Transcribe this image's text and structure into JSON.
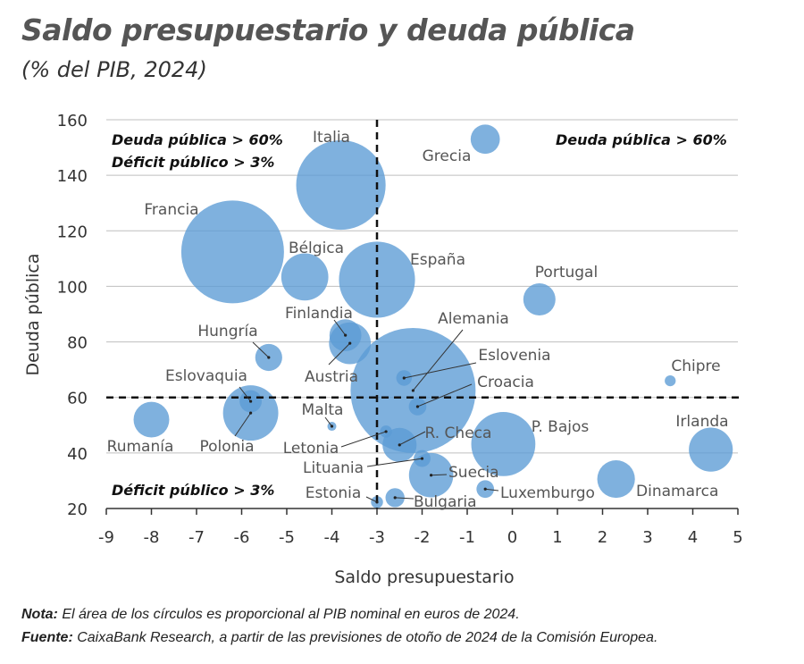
{
  "title": "Saldo presupuestario y deuda pública",
  "subtitle": "(% del PIB, 2024)",
  "note_label": "Nota:",
  "note_text": " El área de los círculos es proporcional al PIB nominal en euros de 2024.",
  "source_label": "Fuente:",
  "source_text": " CaixaBank Research, a partir de las previsiones de otoño de 2024 de la Comisión Europea.",
  "chart_data": {
    "type": "scatter",
    "xlabel": "Saldo presupuestario",
    "ylabel": "Deuda pública",
    "xlim": [
      -9,
      5
    ],
    "ylim": [
      20,
      160
    ],
    "xticks": [
      "-9",
      "-8",
      "-7",
      "-6",
      "-5",
      "-4",
      "-3",
      "-2",
      "-1",
      "0",
      "1",
      "2",
      "3",
      "4",
      "5"
    ],
    "yticks": [
      "20",
      "40",
      "60",
      "80",
      "100",
      "120",
      "140",
      "160"
    ],
    "grid": "horizontal",
    "reference_lines": {
      "x": -3,
      "y": 60
    },
    "bubble_color": "#5b9bd5",
    "size_note": "bubble area ∝ nominal GDP (estimated, bn EUR)",
    "quadrant_labels": {
      "top_left_1": "Deuda pública > 60%",
      "top_left_2": "Déficit público > 3%",
      "top_right": "Deuda pública > 60%",
      "bottom_left": "Déficit público > 3%"
    },
    "points": [
      {
        "label": "Alemania",
        "x": -2.2,
        "y": 62.5,
        "gdp": 4300
      },
      {
        "label": "Francia",
        "x": -6.2,
        "y": 112.4,
        "gdp": 2900
      },
      {
        "label": "Italia",
        "x": -3.8,
        "y": 136.5,
        "gdp": 2200
      },
      {
        "label": "España",
        "x": -3.0,
        "y": 102.4,
        "gdp": 1590
      },
      {
        "label": "P. Bajos",
        "x": -0.2,
        "y": 43.2,
        "gdp": 1130
      },
      {
        "label": "Polonia",
        "x": -5.8,
        "y": 54.4,
        "gdp": 840
      },
      {
        "label": "Bélgica",
        "x": -4.6,
        "y": 103.4,
        "gdp": 610
      },
      {
        "label": "Suecia",
        "x": -1.8,
        "y": 32,
        "gdp": 540
      },
      {
        "label": "Irlanda",
        "x": 4.4,
        "y": 41.2,
        "gdp": 530
      },
      {
        "label": "Austria",
        "x": -3.6,
        "y": 79.5,
        "gdp": 480
      },
      {
        "label": "Dinamarca",
        "x": 2.3,
        "y": 30.6,
        "gdp": 390
      },
      {
        "label": "Rumanía",
        "x": -8.0,
        "y": 52,
        "gdp": 350
      },
      {
        "label": "R. Checa",
        "x": -2.5,
        "y": 42.9,
        "gdp": 320
      },
      {
        "label": "Portugal",
        "x": 0.6,
        "y": 95.3,
        "gdp": 285
      },
      {
        "label": "Finlandia",
        "x": -3.7,
        "y": 82.4,
        "gdp": 280
      },
      {
        "label": "Grecia",
        "x": -0.6,
        "y": 153,
        "gdp": 235
      },
      {
        "label": "Hungría",
        "x": -5.4,
        "y": 74.4,
        "gdp": 200
      },
      {
        "label": "Eslovaquia",
        "x": -5.8,
        "y": 58.6,
        "gdp": 135
      },
      {
        "label": "Bulgaria",
        "x": -2.6,
        "y": 23.9,
        "gdp": 100
      },
      {
        "label": "Luxemburgo",
        "x": -0.6,
        "y": 27,
        "gdp": 85
      },
      {
        "label": "Croacia",
        "x": -2.1,
        "y": 56.7,
        "gdp": 85
      },
      {
        "label": "Lituania",
        "x": -2.0,
        "y": 38,
        "gdp": 78
      },
      {
        "label": "Eslovenia",
        "x": -2.4,
        "y": 67,
        "gdp": 67
      },
      {
        "label": "Letonia",
        "x": -2.8,
        "y": 47.7,
        "gdp": 40
      },
      {
        "label": "Estonia",
        "x": -3.0,
        "y": 22.3,
        "gdp": 40
      },
      {
        "label": "Chipre",
        "x": 3.5,
        "y": 66,
        "gdp": 33
      },
      {
        "label": "Malta",
        "x": -4.0,
        "y": 49.6,
        "gdp": 22
      }
    ]
  }
}
